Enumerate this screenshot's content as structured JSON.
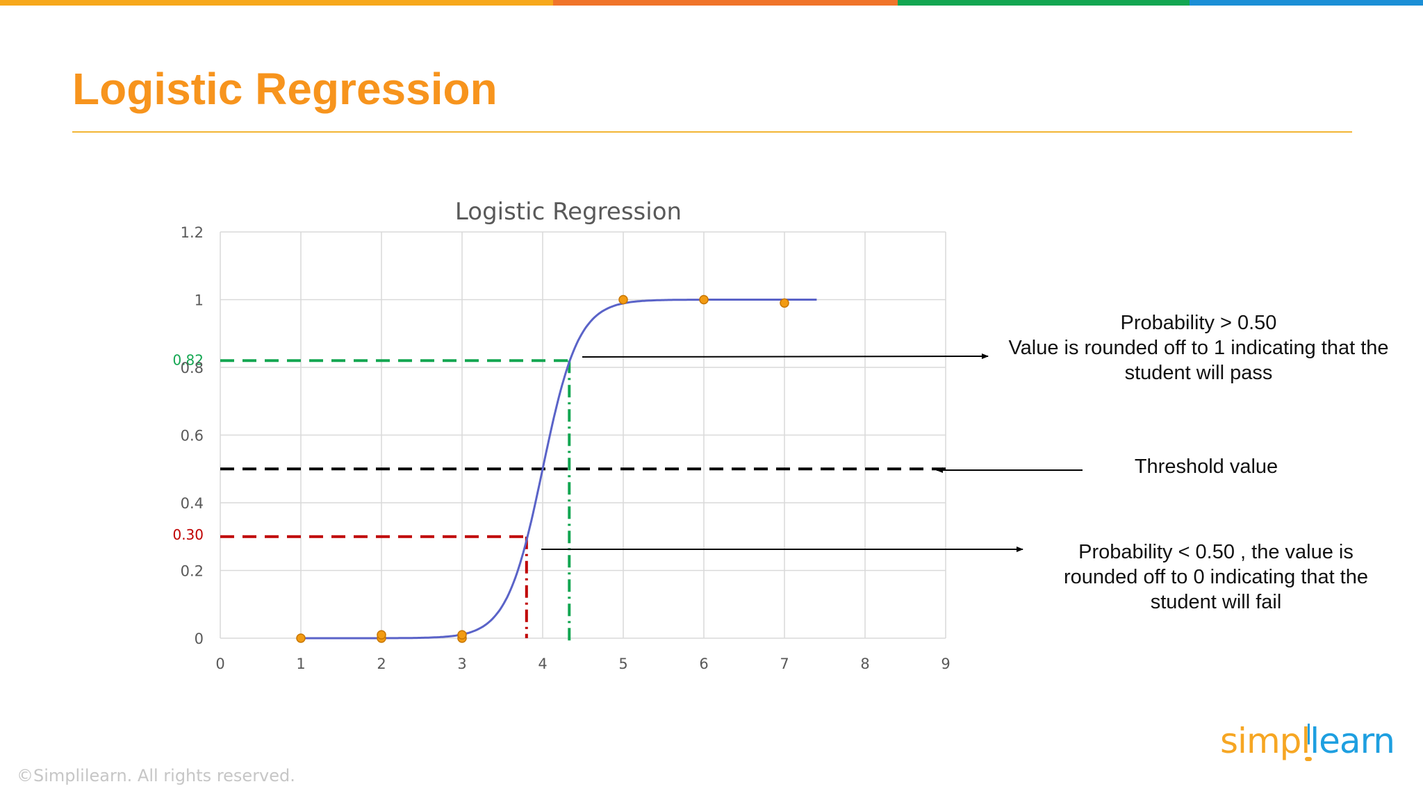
{
  "slide": {
    "title": "Logistic Regression",
    "title_color": "#f7941d",
    "rule_color": "#f2b534",
    "top_bar_colors": [
      "#f7a81b",
      "#f0742a",
      "#13a651",
      "#1b8fd6"
    ],
    "copyright": "©Simplilearn. All rights reserved.",
    "logo": {
      "part1": "simpl",
      "part2": "learn",
      "colors": {
        "part1": "#f6a623",
        "part2": "#1e9fe0"
      }
    }
  },
  "annotations": {
    "pass": {
      "lines": [
        "Probability > 0.50",
        "Value is rounded off to 1 indicating that the",
        "student will pass"
      ]
    },
    "threshold": {
      "text": "Threshold value"
    },
    "fail": {
      "lines": [
        "Probability < 0.50 , the value is",
        "rounded off to 0 indicating that the",
        "student will fail"
      ]
    }
  },
  "chart_data": {
    "type": "scatter",
    "title": "Logistic Regression",
    "xlim": [
      0,
      9
    ],
    "ylim": [
      0,
      1.2
    ],
    "x_ticks": [
      0,
      1,
      2,
      3,
      4,
      5,
      6,
      7,
      8,
      9
    ],
    "y_ticks": [
      0,
      0.2,
      0.4,
      0.6,
      0.8,
      1,
      1.2
    ],
    "y_tick_labels": [
      "0",
      "0.2",
      "0.4",
      "0.6",
      "0.8",
      "1",
      "1.2"
    ],
    "grid": true,
    "points": [
      {
        "x": 1,
        "y": 0
      },
      {
        "x": 2,
        "y": 0
      },
      {
        "x": 2,
        "y": 0.01
      },
      {
        "x": 3,
        "y": 0
      },
      {
        "x": 3,
        "y": 0.01
      },
      {
        "x": 5,
        "y": 1
      },
      {
        "x": 6,
        "y": 1
      },
      {
        "x": 7,
        "y": 0.99
      }
    ],
    "curve": {
      "type": "logistic",
      "x_range": [
        1,
        7.4
      ],
      "midpoint": 4,
      "steepness": 4.5
    },
    "reference_lines": [
      {
        "name": "high",
        "y": 0.82,
        "x_cross": 4.33,
        "label": "0.82",
        "color": "#13a651"
      },
      {
        "name": "threshold",
        "y": 0.5,
        "color": "#000000"
      },
      {
        "name": "low",
        "y": 0.3,
        "x_cross": 3.8,
        "label": "0.30",
        "color": "#c00000"
      }
    ],
    "colors": {
      "curve": "#5a63c8",
      "points": "#f29b12",
      "point_stroke": "#c87600",
      "grid": "#d9d9d9",
      "axis_text": "#595959"
    }
  }
}
